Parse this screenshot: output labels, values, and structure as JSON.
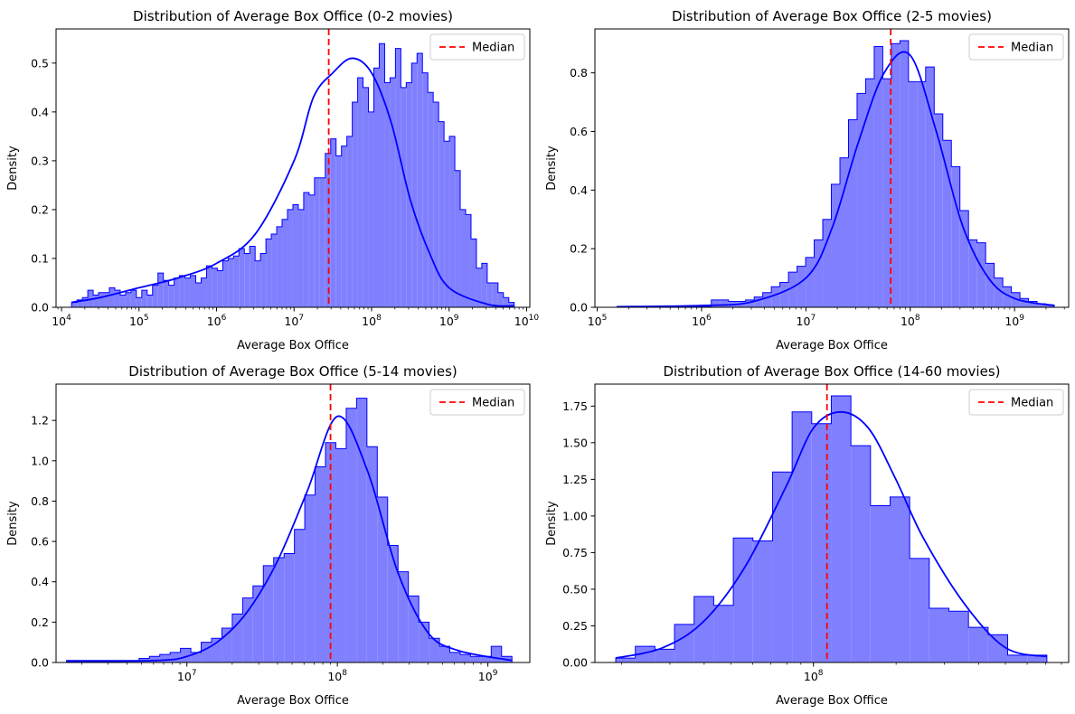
{
  "figure": {
    "background": "#ffffff",
    "colors": {
      "histogram_fill": "#8080ff",
      "histogram_edge": "#0000ff",
      "kde_line": "#0000ff",
      "median_line": "#ff0000"
    }
  },
  "chart_data": [
    {
      "type": "histogram",
      "title": "Distribution of Average Box Office (0-2 movies)",
      "xlabel": "Average Box Office",
      "ylabel": "Density",
      "xscale": "log",
      "xlim": [
        8500,
        11000000000
      ],
      "ylim": [
        0,
        0.57
      ],
      "legend": "top-right",
      "legend_entries": [
        "Median"
      ],
      "median": 28000000,
      "xticks": [
        {
          "value": 10000,
          "base": "10",
          "exp": "4"
        },
        {
          "value": 100000,
          "base": "10",
          "exp": "5"
        },
        {
          "value": 1000000,
          "base": "10",
          "exp": "6"
        },
        {
          "value": 10000000,
          "base": "10",
          "exp": "7"
        },
        {
          "value": 100000000,
          "base": "10",
          "exp": "8"
        },
        {
          "value": 1000000000,
          "base": "10",
          "exp": "9"
        },
        {
          "value": 10000000000,
          "base": "10",
          "exp": "10"
        }
      ],
      "yticks": [
        {
          "value": 0.0,
          "label": "0.0"
        },
        {
          "value": 0.1,
          "label": "0.1"
        },
        {
          "value": 0.2,
          "label": "0.2"
        },
        {
          "value": 0.3,
          "label": "0.3"
        },
        {
          "value": 0.4,
          "label": "0.4"
        },
        {
          "value": 0.5,
          "label": "0.5"
        }
      ],
      "bins": {
        "log_start": 4.13,
        "log_end": 9.84,
        "values": [
          0.01,
          0.015,
          0.02,
          0.035,
          0.025,
          0.03,
          0.03,
          0.04,
          0.035,
          0.025,
          0.03,
          0.035,
          0.02,
          0.035,
          0.025,
          0.045,
          0.07,
          0.055,
          0.045,
          0.06,
          0.065,
          0.06,
          0.065,
          0.05,
          0.06,
          0.085,
          0.08,
          0.075,
          0.095,
          0.1,
          0.105,
          0.12,
          0.11,
          0.125,
          0.095,
          0.11,
          0.14,
          0.15,
          0.165,
          0.18,
          0.2,
          0.21,
          0.2,
          0.235,
          0.23,
          0.265,
          0.265,
          0.315,
          0.345,
          0.31,
          0.33,
          0.35,
          0.42,
          0.47,
          0.45,
          0.4,
          0.49,
          0.54,
          0.46,
          0.47,
          0.53,
          0.45,
          0.46,
          0.5,
          0.52,
          0.48,
          0.44,
          0.42,
          0.38,
          0.34,
          0.35,
          0.28,
          0.2,
          0.19,
          0.14,
          0.08,
          0.09,
          0.05,
          0.05,
          0.03,
          0.02,
          0.01
        ]
      },
      "kde": {
        "log_x": [
          4.13,
          4.5,
          5.0,
          5.5,
          6.0,
          6.5,
          7.0,
          7.25,
          7.5,
          7.75,
          8.0,
          8.25,
          8.5,
          8.75,
          9.0,
          9.5,
          9.84
        ],
        "values": [
          0.01,
          0.02,
          0.04,
          0.06,
          0.09,
          0.15,
          0.3,
          0.43,
          0.48,
          0.51,
          0.48,
          0.38,
          0.22,
          0.11,
          0.04,
          0.006,
          0.003
        ]
      }
    },
    {
      "type": "histogram",
      "title": "Distribution of Average Box Office (2-5 movies)",
      "xlabel": "Average Box Office",
      "ylabel": "Density",
      "xscale": "log",
      "xlim": [
        95000,
        3300000000
      ],
      "ylim": [
        0,
        0.95
      ],
      "legend": "top-right",
      "legend_entries": [
        "Median"
      ],
      "median": 65000000,
      "xticks": [
        {
          "value": 100000,
          "base": "10",
          "exp": "5"
        },
        {
          "value": 1000000,
          "base": "10",
          "exp": "6"
        },
        {
          "value": 10000000,
          "base": "10",
          "exp": "7"
        },
        {
          "value": 100000000,
          "base": "10",
          "exp": "8"
        },
        {
          "value": 1000000000,
          "base": "10",
          "exp": "9"
        }
      ],
      "yticks": [
        {
          "value": 0.0,
          "label": "0.0"
        },
        {
          "value": 0.2,
          "label": "0.2"
        },
        {
          "value": 0.4,
          "label": "0.4"
        },
        {
          "value": 0.6,
          "label": "0.6"
        },
        {
          "value": 0.8,
          "label": "0.8"
        }
      ],
      "bins": {
        "log_start": 5.19,
        "log_end": 9.38,
        "values": [
          0.003,
          0.003,
          0.003,
          0.003,
          0.003,
          0.003,
          0.003,
          0.003,
          0.003,
          0.003,
          0.003,
          0.025,
          0.025,
          0.02,
          0.02,
          0.025,
          0.035,
          0.05,
          0.07,
          0.085,
          0.12,
          0.14,
          0.17,
          0.23,
          0.3,
          0.42,
          0.51,
          0.64,
          0.73,
          0.78,
          0.89,
          0.78,
          0.9,
          0.91,
          0.77,
          0.77,
          0.82,
          0.66,
          0.57,
          0.48,
          0.33,
          0.23,
          0.22,
          0.15,
          0.1,
          0.07,
          0.05,
          0.03,
          0.02,
          0.012,
          0.008
        ]
      },
      "kde": {
        "log_x": [
          5.19,
          6.0,
          6.5,
          7.0,
          7.25,
          7.5,
          7.75,
          8.0,
          8.25,
          8.5,
          8.75,
          9.0,
          9.38
        ],
        "values": [
          0.002,
          0.006,
          0.02,
          0.1,
          0.27,
          0.56,
          0.8,
          0.86,
          0.6,
          0.28,
          0.1,
          0.03,
          0.006
        ]
      }
    },
    {
      "type": "histogram",
      "title": "Distribution of Average Box Office (5-14 movies)",
      "xlabel": "Average Box Office",
      "ylabel": "Density",
      "xscale": "log",
      "xlim": [
        1350000,
        1900000000
      ],
      "ylim": [
        0,
        1.38
      ],
      "legend": "top-right",
      "legend_entries": [
        "Median"
      ],
      "median": 90000000,
      "xticks": [
        {
          "value": 10000000,
          "base": "10",
          "exp": "7"
        },
        {
          "value": 100000000,
          "base": "10",
          "exp": "8"
        },
        {
          "value": 1000000000,
          "base": "10",
          "exp": "9"
        }
      ],
      "yticks": [
        {
          "value": 0.0,
          "label": "0.0"
        },
        {
          "value": 0.2,
          "label": "0.2"
        },
        {
          "value": 0.4,
          "label": "0.4"
        },
        {
          "value": 0.6,
          "label": "0.6"
        },
        {
          "value": 0.8,
          "label": "0.8"
        },
        {
          "value": 1.0,
          "label": "1.0"
        },
        {
          "value": 1.2,
          "label": "1.2"
        }
      ],
      "bins": {
        "log_start": 6.2,
        "log_end": 9.16,
        "values": [
          0.01,
          0.01,
          0.01,
          0.01,
          0.01,
          0.01,
          0.01,
          0.02,
          0.03,
          0.04,
          0.05,
          0.07,
          0.05,
          0.1,
          0.12,
          0.17,
          0.24,
          0.32,
          0.38,
          0.48,
          0.52,
          0.54,
          0.66,
          0.83,
          0.97,
          1.09,
          1.06,
          1.26,
          1.31,
          1.07,
          0.82,
          0.58,
          0.45,
          0.33,
          0.2,
          0.12,
          0.08,
          0.05,
          0.04,
          0.03,
          0.03,
          0.08,
          0.03
        ]
      },
      "kde": {
        "log_x": [
          6.2,
          6.8,
          7.0,
          7.2,
          7.4,
          7.6,
          7.8,
          8.0,
          8.2,
          8.4,
          8.6,
          8.8,
          9.16
        ],
        "values": [
          0.005,
          0.01,
          0.03,
          0.1,
          0.25,
          0.5,
          0.85,
          1.22,
          0.95,
          0.45,
          0.15,
          0.06,
          0.01
        ]
      }
    },
    {
      "type": "histogram",
      "title": "Distribution of Average Box Office (14-60 movies)",
      "xlabel": "Average Box Office",
      "ylabel": "Density",
      "xscale": "log",
      "xlim": [
        16000000,
        850000000
      ],
      "ylim": [
        0,
        1.9
      ],
      "legend": "top-right",
      "legend_entries": [
        "Median"
      ],
      "median": 112000000,
      "xticks": [
        {
          "value": 100000000,
          "base": "10",
          "exp": "8"
        }
      ],
      "yticks": [
        {
          "value": 0.0,
          "label": "0.00"
        },
        {
          "value": 0.25,
          "label": "0.25"
        },
        {
          "value": 0.5,
          "label": "0.50"
        },
        {
          "value": 0.75,
          "label": "0.75"
        },
        {
          "value": 1.0,
          "label": "1.00"
        },
        {
          "value": 1.25,
          "label": "1.25"
        },
        {
          "value": 1.5,
          "label": "1.50"
        },
        {
          "value": 1.75,
          "label": "1.75"
        }
      ],
      "bins": {
        "log_start": 7.28,
        "log_end": 8.85,
        "values": [
          0.03,
          0.11,
          0.09,
          0.26,
          0.45,
          0.39,
          0.85,
          0.83,
          1.3,
          1.71,
          1.63,
          1.82,
          1.48,
          1.07,
          1.13,
          0.71,
          0.37,
          0.35,
          0.24,
          0.19,
          0.05,
          0.05
        ]
      },
      "kde": {
        "log_x": [
          7.28,
          7.45,
          7.6,
          7.75,
          7.9,
          8.0,
          8.1,
          8.2,
          8.3,
          8.4,
          8.55,
          8.7,
          8.85
        ],
        "values": [
          0.03,
          0.1,
          0.28,
          0.65,
          1.2,
          1.6,
          1.71,
          1.6,
          1.25,
          0.85,
          0.4,
          0.1,
          0.04
        ]
      }
    }
  ]
}
